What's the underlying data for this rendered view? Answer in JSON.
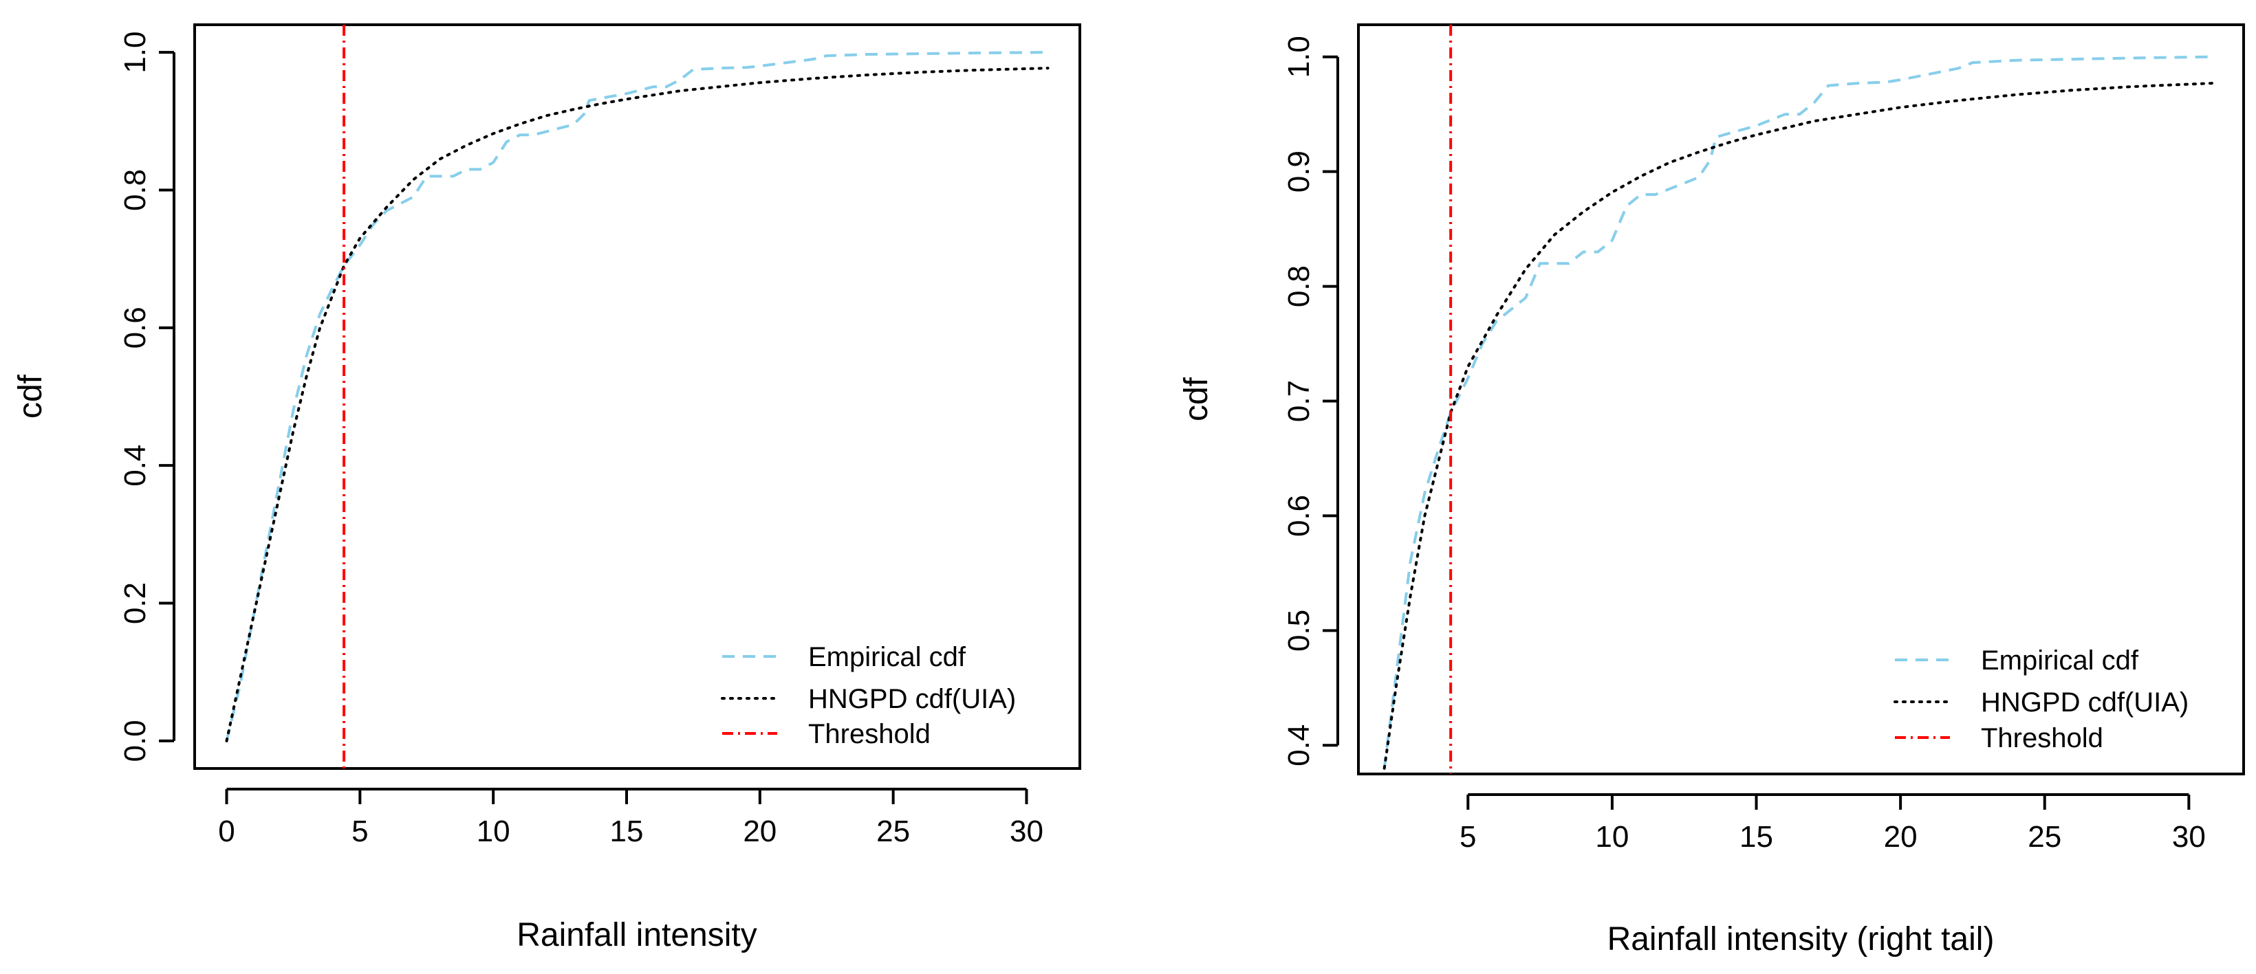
{
  "chart_data": [
    {
      "type": "line",
      "title": "",
      "xlabel": "Rainfall intensity",
      "ylabel": "cdf",
      "xlim": [
        -1.2,
        32.0
      ],
      "ylim": [
        -0.04,
        1.04
      ],
      "xticks": [
        0,
        5,
        10,
        15,
        20,
        25,
        30
      ],
      "xtick_labels": [
        "0",
        "5",
        "10",
        "15",
        "20",
        "25",
        "30"
      ],
      "yticks": [
        0.0,
        0.2,
        0.4,
        0.6,
        0.8,
        1.0
      ],
      "ytick_labels": [
        "0.0",
        "0.2",
        "0.4",
        "0.6",
        "0.8",
        "1.0"
      ],
      "legend_position": "bottom-right",
      "series": [
        {
          "name": "Empirical cdf",
          "color": "#87ceeb",
          "style": "dashed",
          "points": [
            [
              0.0,
              0.0
            ],
            [
              0.5,
              0.08
            ],
            [
              1.0,
              0.18
            ],
            [
              1.5,
              0.28
            ],
            [
              2.0,
              0.38
            ],
            [
              2.5,
              0.48
            ],
            [
              3.0,
              0.56
            ],
            [
              3.5,
              0.62
            ],
            [
              4.0,
              0.66
            ],
            [
              4.4,
              0.69
            ],
            [
              5.0,
              0.72
            ],
            [
              5.5,
              0.75
            ],
            [
              6.0,
              0.77
            ],
            [
              6.5,
              0.78
            ],
            [
              7.0,
              0.79
            ],
            [
              7.5,
              0.82
            ],
            [
              8.0,
              0.82
            ],
            [
              8.5,
              0.82
            ],
            [
              9.0,
              0.83
            ],
            [
              9.5,
              0.83
            ],
            [
              10.0,
              0.84
            ],
            [
              10.5,
              0.87
            ],
            [
              11.0,
              0.88
            ],
            [
              11.5,
              0.88
            ],
            [
              12.0,
              0.885
            ],
            [
              12.5,
              0.89
            ],
            [
              13.0,
              0.895
            ],
            [
              13.4,
              0.91
            ],
            [
              13.6,
              0.93
            ],
            [
              14.0,
              0.933
            ],
            [
              15.0,
              0.94
            ],
            [
              16.0,
              0.95
            ],
            [
              16.5,
              0.95
            ],
            [
              17.0,
              0.96
            ],
            [
              17.5,
              0.975
            ],
            [
              18.5,
              0.977
            ],
            [
              19.5,
              0.978
            ],
            [
              20.0,
              0.98
            ],
            [
              21.0,
              0.985
            ],
            [
              22.0,
              0.99
            ],
            [
              22.5,
              0.995
            ],
            [
              24.0,
              0.997
            ],
            [
              26.0,
              0.998
            ],
            [
              28.0,
              0.999
            ],
            [
              30.8,
              1.0
            ]
          ]
        },
        {
          "name": "HNGPD cdf(UIA)",
          "color": "#000000",
          "style": "dotted",
          "points": [
            [
              0.0,
              0.0
            ],
            [
              0.5,
              0.09
            ],
            [
              1.0,
              0.18
            ],
            [
              1.5,
              0.27
            ],
            [
              2.0,
              0.36
            ],
            [
              2.5,
              0.45
            ],
            [
              3.0,
              0.53
            ],
            [
              3.5,
              0.6
            ],
            [
              4.0,
              0.65
            ],
            [
              4.4,
              0.69
            ],
            [
              5.0,
              0.73
            ],
            [
              6.0,
              0.775
            ],
            [
              7.0,
              0.815
            ],
            [
              8.0,
              0.845
            ],
            [
              9.0,
              0.865
            ],
            [
              10.0,
              0.882
            ],
            [
              11.0,
              0.896
            ],
            [
              12.0,
              0.908
            ],
            [
              13.0,
              0.917
            ],
            [
              14.0,
              0.925
            ],
            [
              15.0,
              0.932
            ],
            [
              16.0,
              0.938
            ],
            [
              17.0,
              0.944
            ],
            [
              18.0,
              0.948
            ],
            [
              20.0,
              0.956
            ],
            [
              22.0,
              0.962
            ],
            [
              24.0,
              0.967
            ],
            [
              26.0,
              0.971
            ],
            [
              28.0,
              0.974
            ],
            [
              30.8,
              0.977
            ]
          ]
        }
      ],
      "threshold": {
        "name": "Threshold",
        "x": 4.4,
        "color": "#ff0000",
        "style": "dashdot"
      }
    },
    {
      "type": "line",
      "title": "",
      "xlabel": "Rainfall intensity (right tail)",
      "ylabel": "cdf",
      "xlim": [
        1.2,
        31.9
      ],
      "ylim": [
        0.375,
        1.028
      ],
      "xticks": [
        5,
        10,
        15,
        20,
        25,
        30
      ],
      "xtick_labels": [
        "5",
        "10",
        "15",
        "20",
        "25",
        "30"
      ],
      "yticks": [
        0.4,
        0.5,
        0.6,
        0.7,
        0.8,
        0.9,
        1.0
      ],
      "ytick_labels": [
        "0.4",
        "0.5",
        "0.6",
        "0.7",
        "0.8",
        "0.9",
        "1.0"
      ],
      "legend_position": "bottom-right",
      "series": [
        {
          "name": "Empirical cdf",
          "color": "#87ceeb",
          "style": "dashed",
          "points": [
            [
              2.1,
              0.38
            ],
            [
              2.5,
              0.46
            ],
            [
              3.0,
              0.56
            ],
            [
              3.5,
              0.62
            ],
            [
              4.0,
              0.66
            ],
            [
              4.4,
              0.69
            ],
            [
              5.0,
              0.72
            ],
            [
              5.5,
              0.75
            ],
            [
              6.0,
              0.77
            ],
            [
              6.5,
              0.78
            ],
            [
              7.0,
              0.79
            ],
            [
              7.5,
              0.82
            ],
            [
              8.0,
              0.82
            ],
            [
              8.5,
              0.82
            ],
            [
              9.0,
              0.83
            ],
            [
              9.5,
              0.83
            ],
            [
              10.0,
              0.84
            ],
            [
              10.5,
              0.87
            ],
            [
              11.0,
              0.88
            ],
            [
              11.5,
              0.88
            ],
            [
              12.0,
              0.885
            ],
            [
              12.5,
              0.89
            ],
            [
              13.0,
              0.895
            ],
            [
              13.4,
              0.91
            ],
            [
              13.6,
              0.93
            ],
            [
              14.0,
              0.933
            ],
            [
              15.0,
              0.94
            ],
            [
              16.0,
              0.95
            ],
            [
              16.5,
              0.95
            ],
            [
              17.0,
              0.96
            ],
            [
              17.5,
              0.975
            ],
            [
              18.5,
              0.977
            ],
            [
              19.5,
              0.978
            ],
            [
              20.0,
              0.98
            ],
            [
              21.0,
              0.985
            ],
            [
              22.0,
              0.99
            ],
            [
              22.5,
              0.995
            ],
            [
              24.0,
              0.997
            ],
            [
              26.0,
              0.998
            ],
            [
              28.0,
              0.999
            ],
            [
              30.8,
              1.0
            ]
          ]
        },
        {
          "name": "HNGPD cdf(UIA)",
          "color": "#000000",
          "style": "dotted",
          "points": [
            [
              2.1,
              0.38
            ],
            [
              2.5,
              0.45
            ],
            [
              3.0,
              0.53
            ],
            [
              3.5,
              0.6
            ],
            [
              4.0,
              0.65
            ],
            [
              4.4,
              0.69
            ],
            [
              5.0,
              0.73
            ],
            [
              6.0,
              0.775
            ],
            [
              7.0,
              0.815
            ],
            [
              8.0,
              0.845
            ],
            [
              9.0,
              0.865
            ],
            [
              10.0,
              0.882
            ],
            [
              11.0,
              0.896
            ],
            [
              12.0,
              0.908
            ],
            [
              13.0,
              0.917
            ],
            [
              14.0,
              0.925
            ],
            [
              15.0,
              0.932
            ],
            [
              16.0,
              0.938
            ],
            [
              17.0,
              0.944
            ],
            [
              18.0,
              0.948
            ],
            [
              20.0,
              0.956
            ],
            [
              22.0,
              0.962
            ],
            [
              24.0,
              0.967
            ],
            [
              26.0,
              0.971
            ],
            [
              28.0,
              0.974
            ],
            [
              30.8,
              0.977
            ]
          ]
        }
      ],
      "threshold": {
        "name": "Threshold",
        "x": 4.4,
        "color": "#ff0000",
        "style": "dashdot"
      }
    }
  ]
}
